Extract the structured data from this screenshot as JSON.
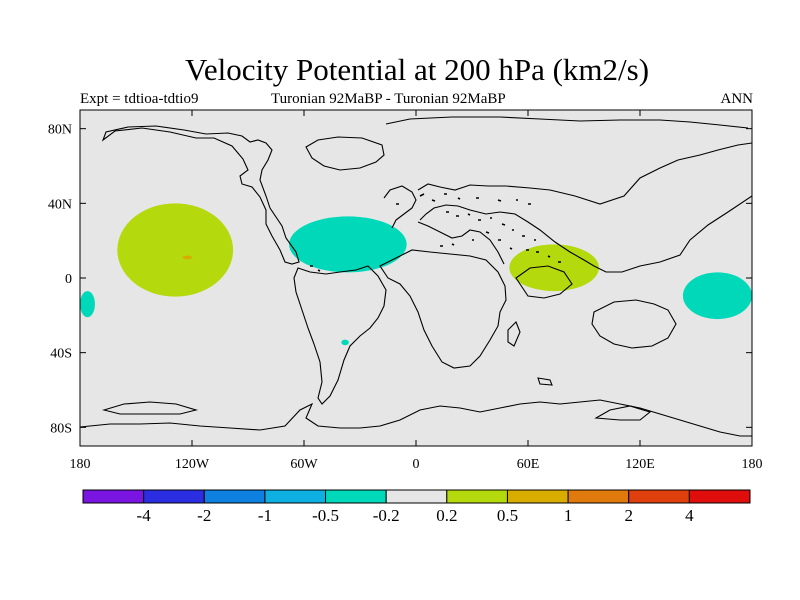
{
  "chart_data": {
    "type": "heatmap",
    "title": "Velocity Potential at 200 hPa (km2/s)",
    "left_string": "Expt = tdtioa-tdtio9",
    "center_string": "Turonian  92MaBP - Turonian  92MaBP",
    "right_string": "ANN",
    "x_range": [
      -180,
      180
    ],
    "y_range": [
      -90,
      90
    ],
    "x_ticks": [
      {
        "value": -180,
        "label": "180"
      },
      {
        "value": -120,
        "label": "120W"
      },
      {
        "value": -60,
        "label": "60W"
      },
      {
        "value": 0,
        "label": "0"
      },
      {
        "value": 60,
        "label": "60E"
      },
      {
        "value": 120,
        "label": "120E"
      },
      {
        "value": 180,
        "label": "180"
      }
    ],
    "y_ticks": [
      {
        "value": 80,
        "label": "80N"
      },
      {
        "value": 40,
        "label": "40N"
      },
      {
        "value": 0,
        "label": "0"
      },
      {
        "value": -40,
        "label": "40S"
      },
      {
        "value": -80,
        "label": "80S"
      }
    ],
    "contour_levels": [
      "-4",
      "-2",
      "-1",
      "-0.5",
      "-0.2",
      "0.2",
      "0.5",
      "1",
      "2",
      "4"
    ],
    "colorbar_colors": [
      "#7a14e0",
      "#2a2ee0",
      "#0d80e0",
      "#0db0e0",
      "#00d9b9",
      "#e6e6e6",
      "#b4d90d",
      "#d9ad00",
      "#e07a0d",
      "#e0400d",
      "#e00d0d"
    ],
    "background_color": "#e6e6e6",
    "regions": [
      {
        "name": "central-pacific-positive",
        "range": "0.2 to 0.5",
        "color": "#b4d90d",
        "lon_range": [
          -160,
          -98
        ],
        "lat_range": [
          -10,
          40
        ]
      },
      {
        "name": "central-pacific-peak",
        "range": "0.5 to 1",
        "color": "#d9ad00",
        "lon_range": [
          -125,
          -120
        ],
        "lat_range": [
          10,
          12
        ]
      },
      {
        "name": "atlantic-negative",
        "range": "-0.5 to -0.2",
        "color": "#00d9b9",
        "lon_range": [
          -68,
          -5
        ],
        "lat_range": [
          3,
          33
        ]
      },
      {
        "name": "west-indian-positive",
        "range": "0.2 to 0.5",
        "color": "#b4d90d",
        "lon_range": [
          50,
          98
        ],
        "lat_range": [
          -7,
          18
        ]
      },
      {
        "name": "west-pacific-negative",
        "range": "-0.5 to -0.2",
        "color": "#00d9b9",
        "lon_range": [
          143,
          180
        ],
        "lat_range": [
          -22,
          3
        ]
      },
      {
        "name": "dateline-negative",
        "range": "-0.5 to -0.2",
        "color": "#00d9b9",
        "lon_range": [
          -180,
          -172
        ],
        "lat_range": [
          -21,
          -7
        ]
      },
      {
        "name": "south-atlantic-small-negative",
        "range": "-0.5 to -0.2",
        "color": "#00d9b9",
        "lon_range": [
          -40,
          -36
        ],
        "lat_range": [
          -36,
          -33
        ]
      }
    ]
  }
}
